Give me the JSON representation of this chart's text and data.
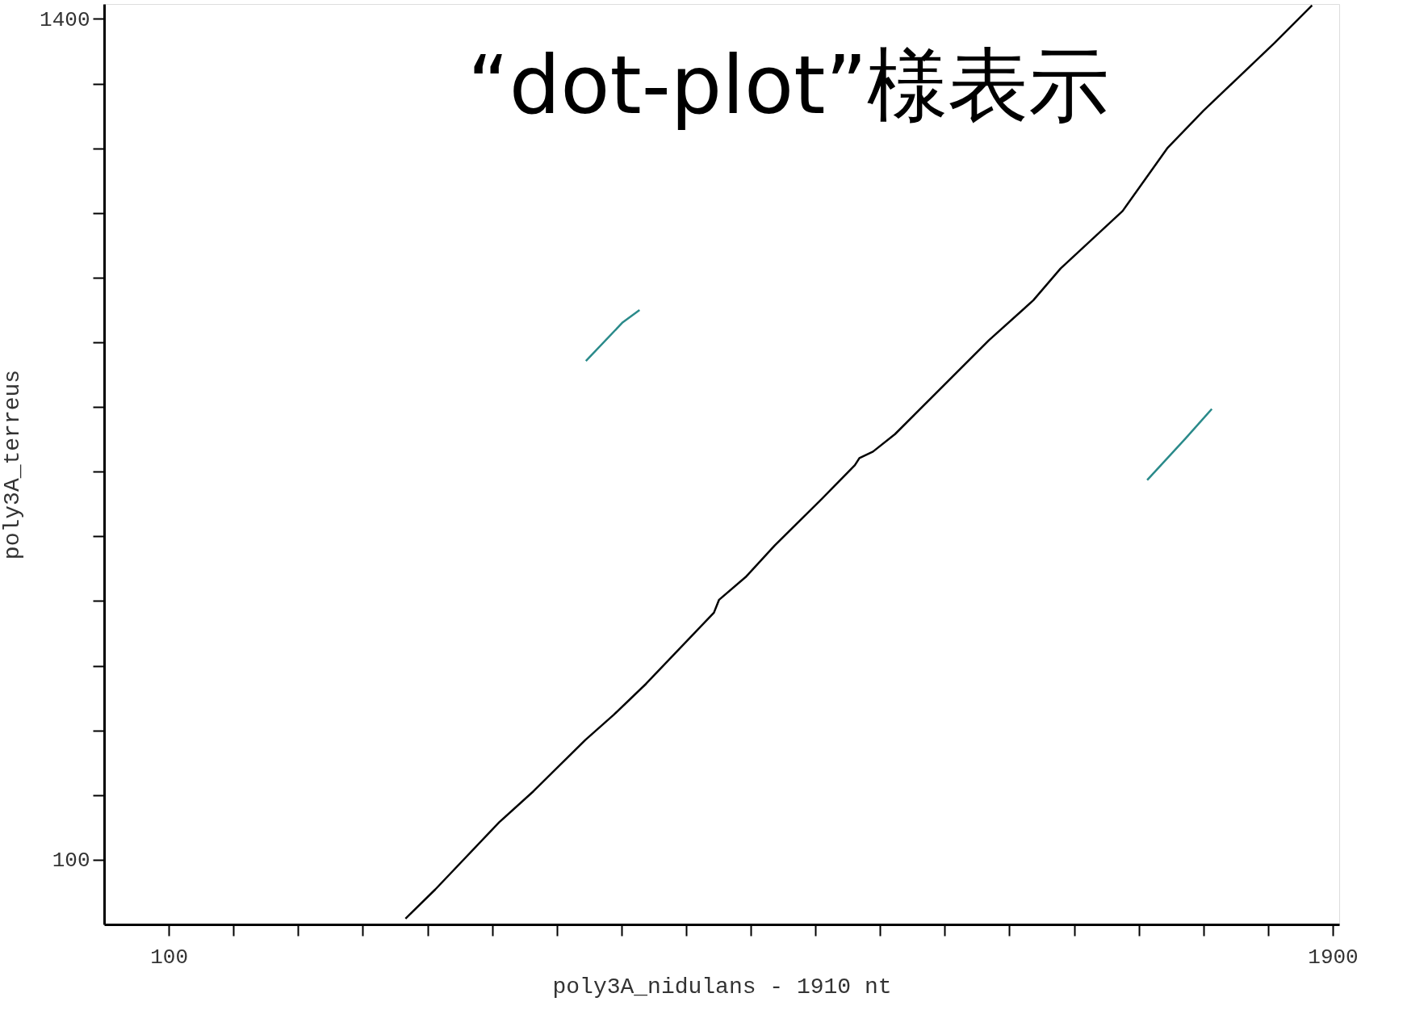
{
  "chart_data": {
    "type": "line",
    "title": "“dot-plot”様表示",
    "xlabel": "poly3A_nidulans - 1910 nt",
    "ylabel": "poly3A_terreus",
    "xlim": [
      0,
      1910
    ],
    "ylim": [
      0,
      1423
    ],
    "xticks": [
      100,
      {
        "value": 200,
        "label": null
      },
      {
        "value": 300,
        "label": null
      },
      {
        "value": 400,
        "label": null
      },
      {
        "value": 500,
        "label": null
      },
      {
        "value": 600,
        "label": null
      },
      {
        "value": 700,
        "label": null
      },
      {
        "value": 800,
        "label": null
      },
      {
        "value": 900,
        "label": null
      },
      {
        "value": 1000,
        "label": null
      },
      {
        "value": 1100,
        "label": null
      },
      {
        "value": 1200,
        "label": null
      },
      {
        "value": 1300,
        "label": null
      },
      {
        "value": 1400,
        "label": null
      },
      {
        "value": 1500,
        "label": null
      },
      {
        "value": 1600,
        "label": null
      },
      {
        "value": 1700,
        "label": null
      },
      {
        "value": 1800,
        "label": null
      },
      1900
    ],
    "yticks": [
      100,
      {
        "value": 200,
        "label": null
      },
      {
        "value": 300,
        "label": null
      },
      {
        "value": 400,
        "label": null
      },
      {
        "value": 500,
        "label": null
      },
      {
        "value": 600,
        "label": null
      },
      {
        "value": 700,
        "label": null
      },
      {
        "value": 800,
        "label": null
      },
      {
        "value": 900,
        "label": null
      },
      {
        "value": 1000,
        "label": null
      },
      {
        "value": 1100,
        "label": null
      },
      {
        "value": 1200,
        "label": null
      },
      {
        "value": 1300,
        "label": null
      },
      1400
    ],
    "grid": false,
    "marker": "none",
    "line_style": "solid",
    "series": [
      {
        "color": "#000000",
        "x": [
          466,
          512,
          611,
          664,
          744,
          788,
          838,
          943,
          951,
          992,
          1037,
          1103,
          1161,
          1168,
          1189,
          1223,
          1368,
          1437,
          1479,
          1575,
          1644,
          1700,
          1810,
          1868
        ],
        "values": [
          9,
          54,
          158,
          206,
          285,
          324,
          372,
          482,
          502,
          537,
          586,
          651,
          710,
          721,
          731,
          758,
          903,
          965,
          1014,
          1103,
          1200,
          1258,
          1363,
          1421
        ]
      },
      {
        "color": "#2a8a8a",
        "x": [
          745,
          802,
          828
        ],
        "values": [
          871,
          931,
          950
        ]
      },
      {
        "color": "#2a8a8a",
        "x": [
          1613,
          1672,
          1713
        ],
        "values": [
          687,
          751,
          797
        ]
      }
    ]
  }
}
